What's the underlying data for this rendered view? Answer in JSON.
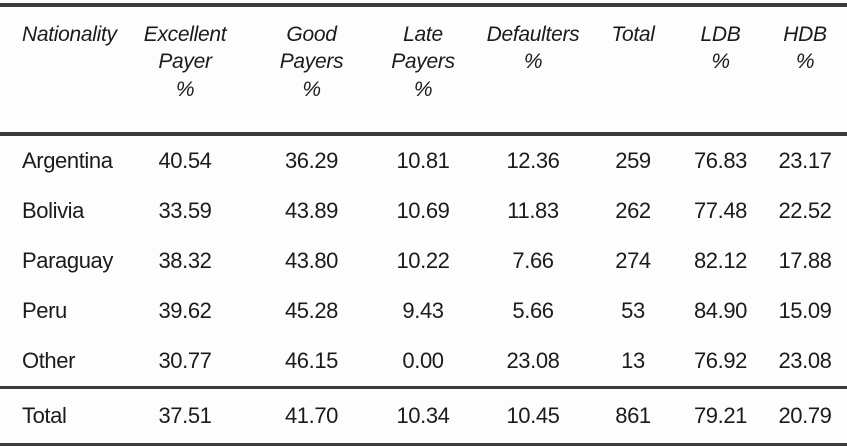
{
  "table": {
    "headers": [
      "Nationality",
      "Excellent\nPayer\n%",
      "Good\nPayers\n%",
      "Late\nPayers\n%",
      "Defaulters\n%",
      "Total",
      "LDB\n%",
      "HDB\n%"
    ],
    "rows": [
      {
        "nationality": "Argentina",
        "excellent": "40.54",
        "good": "36.29",
        "late": "10.81",
        "defaulters": "12.36",
        "total": "259",
        "ldb": "76.83",
        "hdb": "23.17"
      },
      {
        "nationality": "Bolivia",
        "excellent": "33.59",
        "good": "43.89",
        "late": "10.69",
        "defaulters": "11.83",
        "total": "262",
        "ldb": "77.48",
        "hdb": "22.52"
      },
      {
        "nationality": "Paraguay",
        "excellent": "38.32",
        "good": "43.80",
        "late": "10.22",
        "defaulters": "7.66",
        "total": "274",
        "ldb": "82.12",
        "hdb": "17.88"
      },
      {
        "nationality": "Peru",
        "excellent": "39.62",
        "good": "45.28",
        "late": "9.43",
        "defaulters": "5.66",
        "total": "53",
        "ldb": "84.90",
        "hdb": "15.09"
      },
      {
        "nationality": "Other",
        "excellent": "30.77",
        "good": "46.15",
        "late": "0.00",
        "defaulters": "23.08",
        "total": "13",
        "ldb": "76.92",
        "hdb": "23.08"
      }
    ],
    "footer": {
      "nationality": "Total",
      "excellent": "37.51",
      "good": "41.70",
      "late": "10.34",
      "defaulters": "10.45",
      "total": "861",
      "ldb": "79.21",
      "hdb": "20.79"
    }
  },
  "colors": {
    "text": "#1b1b1b",
    "rule": "#3c3c3c",
    "background": "#fdfdfd"
  }
}
